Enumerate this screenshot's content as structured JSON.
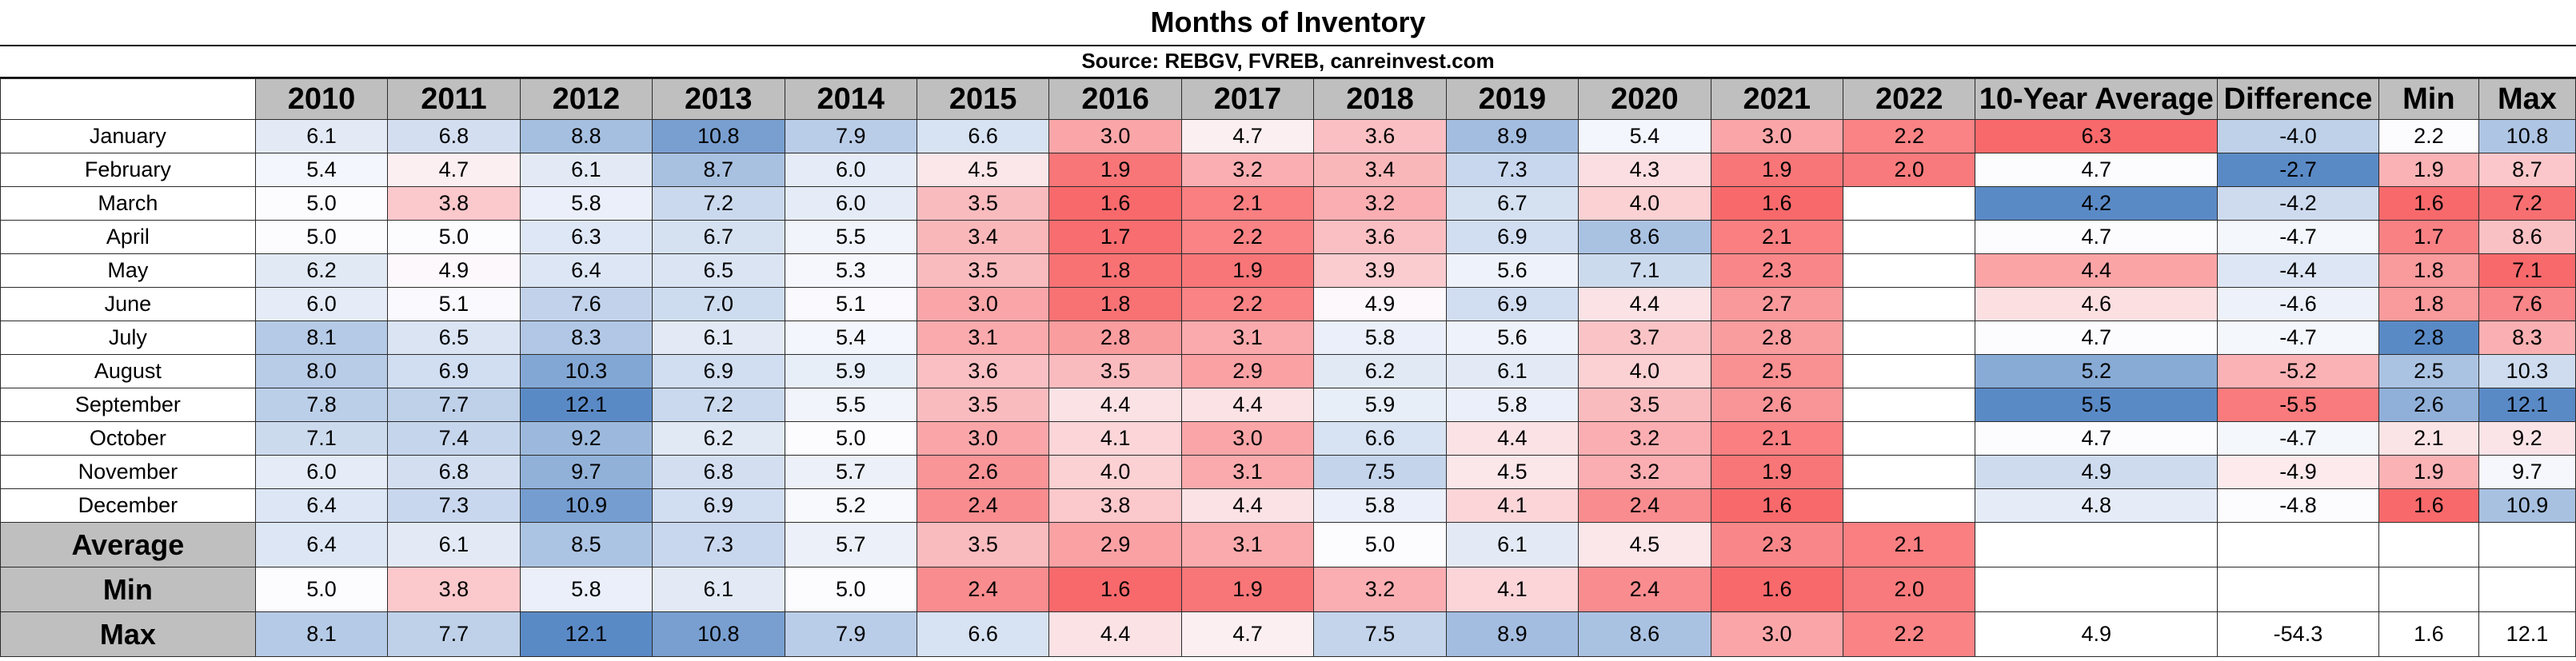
{
  "title": "Months of Inventory",
  "subtitle": "Source: REBGV, FVREB, canreinvest.com",
  "columns": [
    "2010",
    "2011",
    "2012",
    "2013",
    "2014",
    "2015",
    "2016",
    "2017",
    "2018",
    "2019",
    "2020",
    "2021",
    "2022",
    "10-Year Average",
    "Difference",
    "Min",
    "Max"
  ],
  "colors": {
    "low": "#f8696b",
    "mid": "#fcfcff",
    "high": "#5a8ac6",
    "header_fill": "#bfbfbf",
    "border": "#2b2b2b"
  },
  "rows": [
    {
      "label": "January",
      "values": [
        "6.1",
        "6.8",
        "8.8",
        "10.8",
        "7.9",
        "6.6",
        "3.0",
        "4.7",
        "3.6",
        "8.9",
        "5.4",
        "3.0",
        "2.2",
        "6.3",
        "-4.0",
        "2.2",
        "10.8"
      ]
    },
    {
      "label": "February",
      "values": [
        "5.4",
        "4.7",
        "6.1",
        "8.7",
        "6.0",
        "4.5",
        "1.9",
        "3.2",
        "3.4",
        "7.3",
        "4.3",
        "1.9",
        "2.0",
        "4.7",
        "-2.7",
        "1.9",
        "8.7"
      ]
    },
    {
      "label": "March",
      "values": [
        "5.0",
        "3.8",
        "5.8",
        "7.2",
        "6.0",
        "3.5",
        "1.6",
        "2.1",
        "3.2",
        "6.7",
        "4.0",
        "1.6",
        "",
        "4.2",
        "-4.2",
        "1.6",
        "7.2"
      ]
    },
    {
      "label": "April",
      "values": [
        "5.0",
        "5.0",
        "6.3",
        "6.7",
        "5.5",
        "3.4",
        "1.7",
        "2.2",
        "3.6",
        "6.9",
        "8.6",
        "2.1",
        "",
        "4.7",
        "-4.7",
        "1.7",
        "8.6"
      ]
    },
    {
      "label": "May",
      "values": [
        "6.2",
        "4.9",
        "6.4",
        "6.5",
        "5.3",
        "3.5",
        "1.8",
        "1.9",
        "3.9",
        "5.6",
        "7.1",
        "2.3",
        "",
        "4.4",
        "-4.4",
        "1.8",
        "7.1"
      ]
    },
    {
      "label": "June",
      "values": [
        "6.0",
        "5.1",
        "7.6",
        "7.0",
        "5.1",
        "3.0",
        "1.8",
        "2.2",
        "4.9",
        "6.9",
        "4.4",
        "2.7",
        "",
        "4.6",
        "-4.6",
        "1.8",
        "7.6"
      ]
    },
    {
      "label": "July",
      "values": [
        "8.1",
        "6.5",
        "8.3",
        "6.1",
        "5.4",
        "3.1",
        "2.8",
        "3.1",
        "5.8",
        "5.6",
        "3.7",
        "2.8",
        "",
        "4.7",
        "-4.7",
        "2.8",
        "8.3"
      ]
    },
    {
      "label": "August",
      "values": [
        "8.0",
        "6.9",
        "10.3",
        "6.9",
        "5.9",
        "3.6",
        "3.5",
        "2.9",
        "6.2",
        "6.1",
        "4.0",
        "2.5",
        "",
        "5.2",
        "-5.2",
        "2.5",
        "10.3"
      ]
    },
    {
      "label": "September",
      "values": [
        "7.8",
        "7.7",
        "12.1",
        "7.2",
        "5.5",
        "3.5",
        "4.4",
        "4.4",
        "5.9",
        "5.8",
        "3.5",
        "2.6",
        "",
        "5.5",
        "-5.5",
        "2.6",
        "12.1"
      ]
    },
    {
      "label": "October",
      "values": [
        "7.1",
        "7.4",
        "9.2",
        "6.2",
        "5.0",
        "3.0",
        "4.1",
        "3.0",
        "6.6",
        "4.4",
        "3.2",
        "2.1",
        "",
        "4.7",
        "-4.7",
        "2.1",
        "9.2"
      ]
    },
    {
      "label": "November",
      "values": [
        "6.0",
        "6.8",
        "9.7",
        "6.8",
        "5.7",
        "2.6",
        "4.0",
        "3.1",
        "7.5",
        "4.5",
        "3.2",
        "1.9",
        "",
        "4.9",
        "-4.9",
        "1.9",
        "9.7"
      ]
    },
    {
      "label": "December",
      "values": [
        "6.4",
        "7.3",
        "10.9",
        "6.9",
        "5.2",
        "2.4",
        "3.8",
        "4.4",
        "5.8",
        "4.1",
        "2.4",
        "1.6",
        "",
        "4.8",
        "-4.8",
        "1.6",
        "10.9"
      ]
    }
  ],
  "summary_rows": [
    {
      "label": "Average",
      "values": [
        "6.4",
        "6.1",
        "8.5",
        "7.3",
        "5.7",
        "3.5",
        "2.9",
        "3.1",
        "5.0",
        "6.1",
        "4.5",
        "2.3",
        "2.1",
        "",
        "",
        "",
        ""
      ]
    },
    {
      "label": "Min",
      "values": [
        "5.0",
        "3.8",
        "5.8",
        "6.1",
        "5.0",
        "2.4",
        "1.6",
        "1.9",
        "3.2",
        "4.1",
        "2.4",
        "1.6",
        "2.0",
        "",
        "",
        "",
        ""
      ]
    },
    {
      "label": "Max",
      "values": [
        "8.1",
        "7.7",
        "12.1",
        "10.8",
        "7.9",
        "6.6",
        "4.4",
        "4.7",
        "7.5",
        "8.9",
        "8.6",
        "3.0",
        "2.2",
        "4.9",
        "-54.3",
        "1.6",
        "12.1"
      ]
    }
  ],
  "chart_data": {
    "type": "heatmap",
    "title": "Months of Inventory",
    "subtitle": "Source: REBGV, FVREB, canreinvest.com",
    "x": [
      "2010",
      "2011",
      "2012",
      "2013",
      "2014",
      "2015",
      "2016",
      "2017",
      "2018",
      "2019",
      "2020",
      "2021",
      "2022"
    ],
    "y": [
      "January",
      "February",
      "March",
      "April",
      "May",
      "June",
      "July",
      "August",
      "September",
      "October",
      "November",
      "December"
    ],
    "values": [
      [
        6.1,
        6.8,
        8.8,
        10.8,
        7.9,
        6.6,
        3.0,
        4.7,
        3.6,
        8.9,
        5.4,
        3.0,
        2.2
      ],
      [
        5.4,
        4.7,
        6.1,
        8.7,
        6.0,
        4.5,
        1.9,
        3.2,
        3.4,
        7.3,
        4.3,
        1.9,
        2.0
      ],
      [
        5.0,
        3.8,
        5.8,
        7.2,
        6.0,
        3.5,
        1.6,
        2.1,
        3.2,
        6.7,
        4.0,
        1.6,
        null
      ],
      [
        5.0,
        5.0,
        6.3,
        6.7,
        5.5,
        3.4,
        1.7,
        2.2,
        3.6,
        6.9,
        8.6,
        2.1,
        null
      ],
      [
        6.2,
        4.9,
        6.4,
        6.5,
        5.3,
        3.5,
        1.8,
        1.9,
        3.9,
        5.6,
        7.1,
        2.3,
        null
      ],
      [
        6.0,
        5.1,
        7.6,
        7.0,
        5.1,
        3.0,
        1.8,
        2.2,
        4.9,
        6.9,
        4.4,
        2.7,
        null
      ],
      [
        8.1,
        6.5,
        8.3,
        6.1,
        5.4,
        3.1,
        2.8,
        3.1,
        5.8,
        5.6,
        3.7,
        2.8,
        null
      ],
      [
        8.0,
        6.9,
        10.3,
        6.9,
        5.9,
        3.6,
        3.5,
        2.9,
        6.2,
        6.1,
        4.0,
        2.5,
        null
      ],
      [
        7.8,
        7.7,
        12.1,
        7.2,
        5.5,
        3.5,
        4.4,
        4.4,
        5.9,
        5.8,
        3.5,
        2.6,
        null
      ],
      [
        7.1,
        7.4,
        9.2,
        6.2,
        5.0,
        3.0,
        4.1,
        3.0,
        6.6,
        4.4,
        3.2,
        2.1,
        null
      ],
      [
        6.0,
        6.8,
        9.7,
        6.8,
        5.7,
        2.6,
        4.0,
        3.1,
        7.5,
        4.5,
        3.2,
        1.9,
        null
      ],
      [
        6.4,
        7.3,
        10.9,
        6.9,
        5.2,
        2.4,
        3.8,
        4.4,
        5.8,
        4.1,
        2.4,
        1.6,
        null
      ]
    ],
    "side_columns": {
      "10-Year Average": [
        6.3,
        4.7,
        4.2,
        4.7,
        4.4,
        4.6,
        4.7,
        5.2,
        5.5,
        4.7,
        4.9,
        4.8
      ],
      "Difference": [
        -4.0,
        -2.7,
        -4.2,
        -4.7,
        -4.4,
        -4.6,
        -4.7,
        -5.2,
        -5.5,
        -4.7,
        -4.9,
        -4.8
      ],
      "Min": [
        2.2,
        1.9,
        1.6,
        1.7,
        1.8,
        1.8,
        2.8,
        2.5,
        2.6,
        2.1,
        1.9,
        1.6
      ],
      "Max": [
        10.8,
        8.7,
        7.2,
        8.6,
        7.1,
        7.6,
        8.3,
        10.3,
        12.1,
        9.2,
        9.7,
        10.9
      ]
    },
    "summary": {
      "Average": [
        6.4,
        6.1,
        8.5,
        7.3,
        5.7,
        3.5,
        2.9,
        3.1,
        5.0,
        6.1,
        4.5,
        2.3,
        2.1
      ],
      "Min": [
        5.0,
        3.8,
        5.8,
        6.1,
        5.0,
        2.4,
        1.6,
        1.9,
        3.2,
        4.1,
        2.4,
        1.6,
        2.0
      ],
      "Max": [
        8.1,
        7.7,
        12.1,
        10.8,
        7.9,
        6.6,
        4.4,
        4.7,
        7.5,
        8.9,
        8.6,
        3.0,
        2.2
      ],
      "Max_side": [
        4.9,
        -54.3,
        1.6,
        12.1
      ]
    }
  }
}
